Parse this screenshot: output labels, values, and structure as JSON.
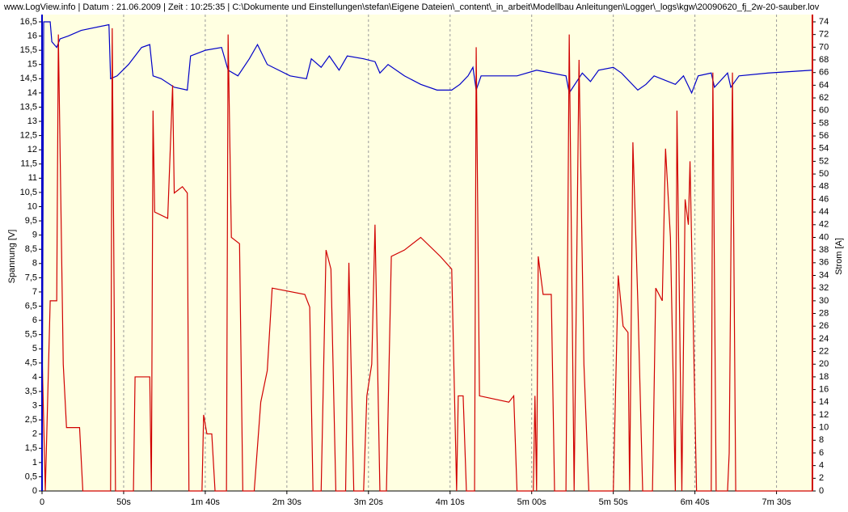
{
  "chart_data": {
    "type": "line",
    "title": "www.LogView.info   |   Datum : 21.06.2009   |   Zeit : 10:25:35   |   C:\\Dokumente und Einstellungen\\stefan\\Eigene Dateien\\_content\\_in_arbeit\\Modellbau Anleitungen\\Logger\\_logs\\kgw\\20090620_fj_2w-20-sauber.lov",
    "ylabel": "Spannung [V]",
    "y2label": "Strom [A]",
    "xlim": [
      0,
      472
    ],
    "ylim": [
      0,
      16.5
    ],
    "y2lim": [
      0,
      74
    ],
    "grid": true,
    "xticks": [
      0,
      {
        "value": 50,
        "label": "50s"
      },
      {
        "value": 100,
        "label": "1m 40s"
      },
      {
        "value": 150,
        "label": "2m 30s"
      },
      {
        "value": 200,
        "label": "3m 20s"
      },
      {
        "value": 250,
        "label": "4m 10s"
      },
      {
        "value": 300,
        "label": "5m 00s"
      },
      {
        "value": 350,
        "label": "5m 50s"
      },
      {
        "value": 400,
        "label": "6m 40s"
      },
      {
        "value": 450,
        "label": "7m 30s"
      }
    ],
    "yticks": [
      0,
      {
        "value": 0.5,
        "label": "0,5"
      },
      1,
      {
        "value": 1.5,
        "label": "1,5"
      },
      2,
      {
        "value": 2.5,
        "label": "2,5"
      },
      3,
      {
        "value": 3.5,
        "label": "3,5"
      },
      4,
      {
        "value": 4.5,
        "label": "4,5"
      },
      5,
      {
        "value": 5.5,
        "label": "5,5"
      },
      6,
      {
        "value": 6.5,
        "label": "6,5"
      },
      7,
      {
        "value": 7.5,
        "label": "7,5"
      },
      8,
      {
        "value": 8.5,
        "label": "8,5"
      },
      9,
      {
        "value": 9.5,
        "label": "9,5"
      },
      10,
      {
        "value": 10.5,
        "label": "10,5"
      },
      11,
      {
        "value": 11.5,
        "label": "11,5"
      },
      12,
      {
        "value": 12.5,
        "label": "12,5"
      },
      13,
      {
        "value": 13.5,
        "label": "13,5"
      },
      14,
      {
        "value": 14.5,
        "label": "14,5"
      },
      15,
      {
        "value": 15.5,
        "label": "15,5"
      },
      16,
      {
        "value": 16.5,
        "label": "16,5"
      }
    ],
    "y2ticks": [
      0,
      2,
      4,
      6,
      8,
      10,
      12,
      14,
      16,
      18,
      20,
      22,
      24,
      26,
      28,
      30,
      32,
      34,
      36,
      38,
      40,
      42,
      44,
      46,
      48,
      50,
      52,
      54,
      56,
      58,
      60,
      62,
      64,
      66,
      68,
      70,
      72,
      74
    ],
    "series": [
      {
        "color": "#0000c8",
        "axis": "y",
        "x": [
          0,
          1,
          5,
          6,
          9,
          11,
          16,
          24,
          41,
          42,
          46,
          53,
          61,
          66,
          68,
          73,
          81,
          89,
          91,
          100,
          110,
          114,
          120,
          127,
          132,
          138,
          145,
          152,
          162,
          165,
          171,
          176,
          182,
          187,
          197,
          204,
          207,
          212,
          222,
          232,
          242,
          251,
          256,
          261,
          264,
          266,
          269,
          291,
          303,
          321,
          323,
          331,
          336,
          341,
          350,
          355,
          365,
          370,
          375,
          388,
          393,
          398,
          402,
          410,
          412,
          420,
          422,
          427,
          445,
          472
        ],
        "values": [
          0,
          16.5,
          16.5,
          15.8,
          15.6,
          15.9,
          16.0,
          16.2,
          16.4,
          14.5,
          14.6,
          15.0,
          15.6,
          15.7,
          14.6,
          14.5,
          14.2,
          14.1,
          15.3,
          15.5,
          15.6,
          14.8,
          14.6,
          15.2,
          15.7,
          15.0,
          14.8,
          14.6,
          14.5,
          15.2,
          14.9,
          15.3,
          14.8,
          15.3,
          15.2,
          15.1,
          14.7,
          15.0,
          14.6,
          14.3,
          14.1,
          14.1,
          14.3,
          14.6,
          14.9,
          14.1,
          14.6,
          14.6,
          14.8,
          14.6,
          14.0,
          14.7,
          14.4,
          14.8,
          14.9,
          14.7,
          14.1,
          14.3,
          14.6,
          14.3,
          14.6,
          14.0,
          14.6,
          14.7,
          14.2,
          14.7,
          14.2,
          14.6,
          14.7,
          14.8
        ]
      },
      {
        "color": "#d00000",
        "axis": "y2",
        "x": [
          0,
          2,
          5,
          9,
          10,
          13,
          15,
          23,
          25,
          42,
          43,
          45,
          56,
          57,
          66,
          67,
          68,
          69,
          77,
          80,
          81,
          86,
          89,
          90,
          98,
          99,
          101,
          104,
          106,
          113,
          114,
          116,
          121,
          123,
          130,
          134,
          138,
          141,
          161,
          164,
          166,
          171,
          174,
          177,
          180,
          186,
          188,
          191,
          197,
          199,
          202,
          204,
          207,
          211,
          214,
          222,
          232,
          244,
          251,
          254,
          255,
          258,
          260,
          265,
          266,
          268,
          286,
          289,
          291,
          301,
          302,
          303,
          304,
          307,
          312,
          314,
          321,
          323,
          326,
          329,
          332,
          335,
          350,
          353,
          356,
          359,
          360,
          362,
          365,
          368,
          374,
          376,
          380,
          382,
          385,
          388,
          389,
          392,
          394,
          396,
          397,
          401,
          410,
          411,
          413,
          420,
          421,
          423,
          425,
          472
        ],
        "values": [
          22,
          0,
          30,
          30,
          72,
          20,
          10,
          10,
          0,
          0,
          73,
          0,
          0,
          18,
          18,
          0,
          60,
          44,
          43,
          64,
          47,
          48,
          47,
          0,
          0,
          12,
          9,
          9,
          0,
          0,
          72,
          40,
          39,
          0,
          0,
          14,
          19,
          32,
          31,
          29,
          0,
          0,
          38,
          35,
          0,
          0,
          36,
          0,
          0,
          15,
          20,
          42,
          0,
          0,
          37,
          38,
          40,
          37,
          35,
          0,
          15,
          15,
          0,
          0,
          70,
          15,
          14,
          15,
          0,
          0,
          15,
          0,
          37,
          31,
          31,
          0,
          0,
          72,
          0,
          68,
          20,
          0,
          0,
          34,
          26,
          25,
          0,
          55,
          30,
          0,
          0,
          32,
          30,
          54,
          40,
          0,
          60,
          0,
          46,
          42,
          52,
          0,
          0,
          66,
          0,
          0,
          6,
          66,
          0,
          0
        ]
      }
    ]
  }
}
